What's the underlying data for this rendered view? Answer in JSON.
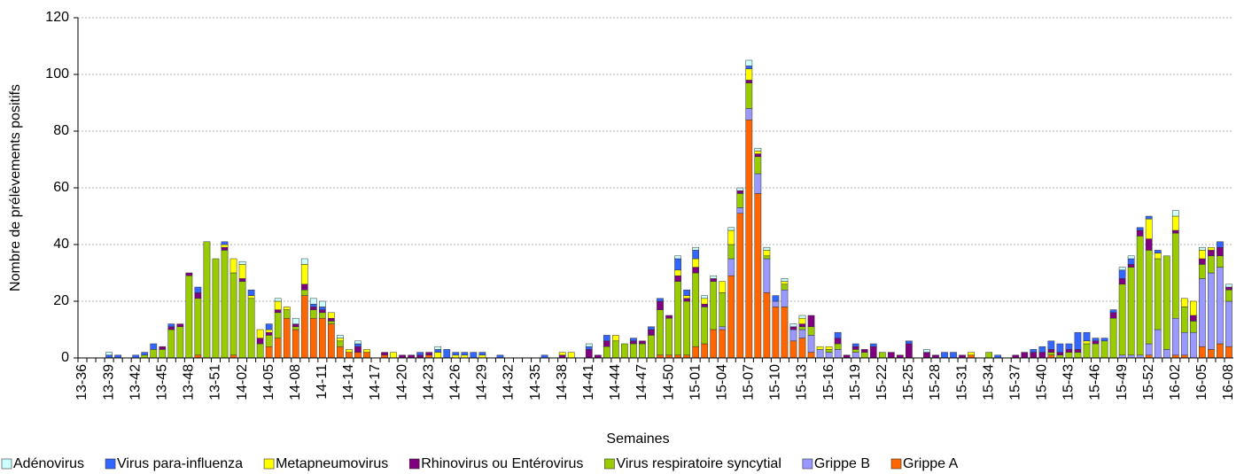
{
  "chart_data": {
    "type": "stacked_bar",
    "xlabel": "Semaines",
    "ylabel": "Nombre de prélèvements positifs",
    "categories": [
      "13-36",
      null,
      null,
      "13-39",
      null,
      null,
      "13-42",
      null,
      null,
      "13-45",
      null,
      null,
      "13-48",
      null,
      null,
      "13-51",
      null,
      null,
      "14-02",
      null,
      null,
      "14-05",
      null,
      null,
      "14-08",
      null,
      null,
      "14-11",
      null,
      null,
      "14-14",
      null,
      null,
      "14-17",
      null,
      null,
      "14-20",
      null,
      null,
      "14-23",
      null,
      null,
      "14-26",
      null,
      null,
      "14-29",
      null,
      null,
      "14-32",
      null,
      null,
      "14-35",
      null,
      null,
      "14-38",
      null,
      null,
      "14-41",
      null,
      null,
      "14-44",
      null,
      null,
      "14-47",
      null,
      null,
      "14-50",
      null,
      null,
      "15-01",
      null,
      null,
      "15-04",
      null,
      null,
      "15-07",
      null,
      null,
      "15-10",
      null,
      null,
      "15-13",
      null,
      null,
      "15-16",
      null,
      null,
      "15-19",
      null,
      null,
      "15-22",
      null,
      null,
      "15-25",
      null,
      null,
      "15-28",
      null,
      null,
      "15-31",
      null,
      null,
      "15-34",
      null,
      null,
      "15-37",
      null,
      null,
      "15-40",
      null,
      null,
      "15-43",
      null,
      null,
      "15-46",
      null,
      null,
      "15-49",
      null,
      null,
      "15-52",
      null,
      null,
      "16-02",
      null,
      null,
      "16-05",
      null,
      null,
      "16-08"
    ],
    "series": [
      {
        "name": "Adénovirus",
        "color": "#ccffff",
        "values": [
          0,
          0,
          0,
          1,
          0,
          0,
          0,
          0,
          0,
          0,
          0,
          0,
          0,
          0,
          0,
          0,
          0,
          0,
          1,
          0,
          0,
          0,
          1,
          0,
          2,
          2,
          2,
          2,
          0,
          1,
          0,
          1,
          0,
          0,
          0,
          0,
          0,
          0,
          0,
          0,
          1,
          0,
          0,
          0,
          0,
          0,
          0,
          0,
          0,
          0,
          0,
          0,
          0,
          0,
          0,
          0,
          0,
          1,
          0,
          0,
          0,
          0,
          0,
          0,
          0,
          0,
          0,
          1,
          0,
          1,
          1,
          1,
          0,
          1,
          1,
          2,
          1,
          1,
          0,
          1,
          1,
          1,
          0,
          0,
          0,
          0,
          0,
          0,
          0,
          0,
          0,
          0,
          0,
          0,
          0,
          1,
          0,
          0,
          0,
          0,
          0,
          0,
          0,
          0,
          0,
          0,
          0,
          0,
          0,
          0,
          0,
          0,
          0,
          0,
          0,
          0,
          0,
          1,
          1,
          0,
          0,
          0,
          0,
          2,
          0,
          0,
          1,
          0,
          0,
          1
        ]
      },
      {
        "name": "Virus para-influenza",
        "color": "#3366ff",
        "values": [
          0,
          0,
          0,
          1,
          1,
          0,
          1,
          1,
          2,
          0,
          1,
          0,
          0,
          2,
          0,
          0,
          1,
          0,
          0,
          2,
          0,
          2,
          0,
          0,
          0,
          0,
          1,
          1,
          0,
          0,
          0,
          1,
          0,
          0,
          0,
          0,
          0,
          0,
          1,
          0,
          1,
          3,
          1,
          1,
          2,
          1,
          0,
          1,
          0,
          0,
          0,
          0,
          1,
          0,
          0,
          0,
          0,
          1,
          0,
          2,
          0,
          0,
          1,
          0,
          1,
          1,
          0,
          4,
          2,
          3,
          0,
          0,
          0,
          0,
          0,
          1,
          0,
          0,
          2,
          0,
          0,
          0,
          0,
          0,
          0,
          2,
          0,
          1,
          0,
          1,
          0,
          0,
          0,
          1,
          0,
          0,
          0,
          2,
          2,
          0,
          0,
          0,
          0,
          1,
          0,
          0,
          0,
          1,
          2,
          3,
          3,
          2,
          6,
          3,
          1,
          1,
          1,
          3,
          2,
          1,
          1,
          1,
          0,
          0,
          0,
          0,
          0,
          0,
          2,
          0
        ]
      },
      {
        "name": "Metapneumovirus",
        "color": "#ffff00",
        "values": [
          0,
          0,
          0,
          0,
          0,
          0,
          0,
          0,
          0,
          0,
          0,
          0,
          0,
          0,
          0,
          0,
          1,
          5,
          5,
          1,
          3,
          1,
          3,
          1,
          0,
          7,
          0,
          0,
          2,
          1,
          1,
          0,
          1,
          0,
          0,
          2,
          0,
          0,
          0,
          0,
          2,
          0,
          1,
          1,
          0,
          1,
          0,
          0,
          0,
          0,
          0,
          0,
          0,
          0,
          1,
          2,
          0,
          0,
          0,
          0,
          2,
          0,
          0,
          0,
          0,
          0,
          0,
          2,
          1,
          3,
          2,
          0,
          4,
          5,
          0,
          4,
          1,
          2,
          0,
          1,
          0,
          2,
          0,
          1,
          1,
          0,
          0,
          0,
          0,
          0,
          0,
          0,
          0,
          0,
          0,
          0,
          0,
          0,
          0,
          0,
          1,
          0,
          0,
          0,
          0,
          0,
          0,
          0,
          0,
          0,
          0,
          0,
          0,
          1,
          0,
          0,
          0,
          0,
          0,
          0,
          7,
          2,
          0,
          5,
          3,
          5,
          3,
          1,
          0,
          0
        ]
      },
      {
        "name": "Rhinovirus ou Entérovirus",
        "color": "#800080",
        "values": [
          0,
          0,
          0,
          0,
          0,
          0,
          0,
          0,
          0,
          1,
          1,
          1,
          1,
          2,
          0,
          0,
          1,
          0,
          1,
          0,
          2,
          1,
          1,
          0,
          1,
          2,
          1,
          1,
          1,
          0,
          0,
          2,
          0,
          0,
          1,
          0,
          1,
          1,
          1,
          1,
          0,
          0,
          0,
          0,
          0,
          0,
          0,
          0,
          0,
          0,
          0,
          0,
          0,
          0,
          1,
          0,
          0,
          3,
          1,
          2,
          0,
          0,
          1,
          1,
          2,
          3,
          1,
          2,
          1,
          2,
          1,
          1,
          0,
          0,
          1,
          1,
          1,
          0,
          0,
          0,
          1,
          1,
          4,
          0,
          0,
          2,
          1,
          1,
          1,
          4,
          0,
          2,
          1,
          5,
          0,
          2,
          1,
          0,
          0,
          1,
          0,
          0,
          0,
          0,
          0,
          1,
          2,
          2,
          2,
          1,
          1,
          1,
          1,
          0,
          1,
          0,
          2,
          2,
          1,
          2,
          4,
          0,
          0,
          1,
          0,
          2,
          2,
          2,
          3,
          1
        ]
      },
      {
        "name": "Virus respiratoire syncytial",
        "color": "#99cc00",
        "values": [
          0,
          0,
          0,
          0,
          0,
          0,
          0,
          1,
          3,
          3,
          10,
          11,
          29,
          20,
          41,
          35,
          38,
          29,
          27,
          21,
          5,
          4,
          9,
          3,
          1,
          2,
          3,
          2,
          1,
          2,
          0,
          0,
          0,
          0,
          0,
          0,
          0,
          0,
          0,
          0,
          0,
          0,
          0,
          0,
          0,
          0,
          0,
          0,
          0,
          0,
          0,
          0,
          0,
          0,
          0,
          0,
          0,
          0,
          0,
          4,
          6,
          5,
          5,
          5,
          8,
          16,
          13,
          26,
          19,
          26,
          13,
          17,
          12,
          5,
          5,
          9,
          6,
          1,
          0,
          2,
          0,
          1,
          3,
          0,
          1,
          2,
          0,
          1,
          2,
          0,
          2,
          0,
          0,
          0,
          0,
          0,
          0,
          0,
          0,
          0,
          0,
          0,
          2,
          0,
          0,
          0,
          0,
          0,
          0,
          1,
          1,
          2,
          2,
          5,
          5,
          6,
          14,
          25,
          31,
          42,
          33,
          25,
          33,
          30,
          9,
          4,
          5,
          6,
          4,
          4
        ]
      },
      {
        "name": "Grippe B",
        "color": "#9999ff",
        "values": [
          0,
          0,
          0,
          0,
          0,
          0,
          0,
          0,
          0,
          0,
          0,
          0,
          0,
          0,
          0,
          0,
          0,
          0,
          0,
          0,
          0,
          0,
          0,
          0,
          0,
          0,
          0,
          0,
          0,
          0,
          0,
          0,
          0,
          0,
          0,
          0,
          0,
          0,
          0,
          0,
          0,
          0,
          0,
          0,
          0,
          0,
          0,
          0,
          0,
          0,
          0,
          0,
          0,
          0,
          0,
          0,
          0,
          0,
          0,
          0,
          0,
          0,
          0,
          0,
          0,
          0,
          0,
          0,
          0,
          0,
          0,
          0,
          1,
          6,
          2,
          4,
          7,
          12,
          2,
          6,
          4,
          3,
          6,
          3,
          2,
          3,
          0,
          2,
          0,
          0,
          0,
          0,
          0,
          0,
          0,
          0,
          0,
          0,
          0,
          0,
          0,
          0,
          0,
          0,
          0,
          0,
          0,
          0,
          0,
          0,
          0,
          0,
          0,
          0,
          0,
          0,
          0,
          1,
          1,
          1,
          4,
          10,
          3,
          13,
          8,
          9,
          24,
          27,
          27,
          16
        ]
      },
      {
        "name": "Grippe A",
        "color": "#ff6600",
        "values": [
          0,
          0,
          0,
          0,
          0,
          0,
          0,
          0,
          0,
          0,
          0,
          0,
          0,
          1,
          0,
          0,
          0,
          1,
          0,
          0,
          0,
          4,
          7,
          14,
          10,
          22,
          14,
          14,
          12,
          4,
          2,
          2,
          2,
          0,
          1,
          0,
          0,
          0,
          0,
          1,
          0,
          0,
          0,
          0,
          0,
          0,
          0,
          0,
          0,
          0,
          0,
          0,
          0,
          0,
          0,
          0,
          0,
          0,
          0,
          0,
          0,
          0,
          0,
          0,
          0,
          1,
          1,
          1,
          1,
          4,
          5,
          10,
          10,
          29,
          51,
          84,
          58,
          23,
          18,
          18,
          6,
          7,
          2,
          0,
          0,
          0,
          0,
          0,
          0,
          0,
          0,
          0,
          0,
          0,
          0,
          0,
          0,
          0,
          0,
          0,
          1,
          0,
          0,
          0,
          0,
          0,
          0,
          0,
          0,
          1,
          0,
          0,
          0,
          0,
          0,
          0,
          0,
          0,
          0,
          0,
          1,
          0,
          0,
          1,
          1,
          0,
          4,
          3,
          5,
          4
        ]
      }
    ],
    "ylim": [
      0,
      120
    ],
    "yticks": [
      0,
      20,
      40,
      60,
      80,
      100,
      120
    ],
    "grid": true,
    "legend": "bottom"
  }
}
